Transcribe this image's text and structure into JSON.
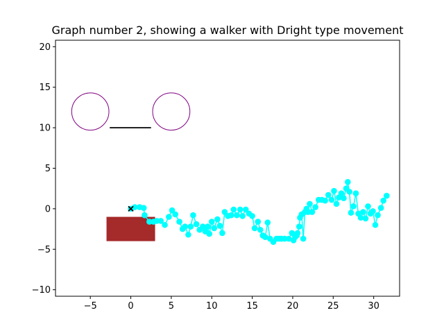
{
  "chart_data": {
    "type": "scatter",
    "title": "Graph number 2, showing a walker with Dright type movement",
    "xlabel": "",
    "ylabel": "",
    "xlim": [
      -9.3,
      33.2
    ],
    "ylim": [
      -10.8,
      20.8
    ],
    "xticks": [
      {
        "value": -5,
        "label": "−5"
      },
      {
        "value": 0,
        "label": "0"
      },
      {
        "value": 5,
        "label": "5"
      },
      {
        "value": 10,
        "label": "10"
      },
      {
        "value": 15,
        "label": "15"
      },
      {
        "value": 20,
        "label": "20"
      },
      {
        "value": 25,
        "label": "25"
      },
      {
        "value": 30,
        "label": "30"
      }
    ],
    "yticks": [
      {
        "value": -10,
        "label": "−10"
      },
      {
        "value": -5,
        "label": "−5"
      },
      {
        "value": 0,
        "label": "0"
      },
      {
        "value": 5,
        "label": "5"
      },
      {
        "value": 10,
        "label": "10"
      },
      {
        "value": 15,
        "label": "15"
      },
      {
        "value": 20,
        "label": "20"
      }
    ],
    "grid": false,
    "legend": "none",
    "colors": {
      "walker": "#00ffff",
      "circles": "#800080",
      "segment": "#000000",
      "rectangle": "#a52a2a",
      "start_marker": "#000000"
    },
    "start_marker": {
      "x": 0,
      "y": 0,
      "symbol": "x"
    },
    "circles": [
      {
        "cx": -5,
        "cy": 12,
        "r": 2.3
      },
      {
        "cx": 5,
        "cy": 12,
        "r": 2.3
      }
    ],
    "segment": {
      "x1": -2.6,
      "y1": 10,
      "x2": 2.5,
      "y2": 10
    },
    "rectangle": {
      "x0": -3,
      "y0": -4,
      "x1": 3,
      "y1": -1
    },
    "walker_path": [
      [
        0,
        0
      ],
      [
        0.5,
        0.2
      ],
      [
        1.1,
        0.2
      ],
      [
        1.6,
        0.1
      ],
      [
        1.7,
        -0.8
      ],
      [
        2.3,
        -1.6
      ],
      [
        2.8,
        -1.6
      ],
      [
        3.2,
        -1.5
      ],
      [
        3.7,
        -1.5
      ],
      [
        4.2,
        -2.0
      ],
      [
        4.7,
        -1.0
      ],
      [
        5.1,
        -0.2
      ],
      [
        5.5,
        -0.7
      ],
      [
        6.0,
        -1.6
      ],
      [
        6.4,
        -2.5
      ],
      [
        6.7,
        -2.2
      ],
      [
        7.1,
        -3.2
      ],
      [
        7.4,
        -2.2
      ],
      [
        7.7,
        -0.8
      ],
      [
        8.1,
        -1.9
      ],
      [
        8.5,
        -2.6
      ],
      [
        8.9,
        -2.2
      ],
      [
        9.2,
        -2.8
      ],
      [
        9.5,
        -2.2
      ],
      [
        9.7,
        -3.1
      ],
      [
        10.0,
        -1.6
      ],
      [
        10.3,
        -2.4
      ],
      [
        10.7,
        -1.3
      ],
      [
        11.0,
        -2.1
      ],
      [
        11.3,
        -3.0
      ],
      [
        11.6,
        -0.4
      ],
      [
        12.0,
        -0.9
      ],
      [
        12.4,
        -0.8
      ],
      [
        12.7,
        -0.1
      ],
      [
        13.1,
        -0.8
      ],
      [
        13.5,
        -0.1
      ],
      [
        13.8,
        -0.9
      ],
      [
        14.2,
        -0.1
      ],
      [
        14.6,
        -0.6
      ],
      [
        15.0,
        -0.9
      ],
      [
        15.3,
        -2.4
      ],
      [
        15.7,
        -1.6
      ],
      [
        16.0,
        -2.6
      ],
      [
        16.3,
        -3.3
      ],
      [
        16.6,
        -3.5
      ],
      [
        16.9,
        -1.7
      ],
      [
        17.2,
        -3.7
      ],
      [
        17.6,
        -4.1
      ],
      [
        18.0,
        -3.7
      ],
      [
        18.3,
        -3.7
      ],
      [
        18.6,
        -3.7
      ],
      [
        19.0,
        -3.7
      ],
      [
        19.5,
        -3.7
      ],
      [
        19.9,
        -3.0
      ],
      [
        20.1,
        -3.9
      ],
      [
        20.3,
        -3.5
      ],
      [
        20.5,
        -3.3
      ],
      [
        20.6,
        -3.0
      ],
      [
        20.8,
        -2.2
      ],
      [
        20.9,
        -1.1
      ],
      [
        21.1,
        -0.7
      ],
      [
        21.3,
        -3.7
      ],
      [
        21.5,
        -0.4
      ],
      [
        21.7,
        0.0
      ],
      [
        21.9,
        -0.4
      ],
      [
        22.1,
        0.6
      ],
      [
        22.4,
        -0.4
      ],
      [
        22.8,
        0.2
      ],
      [
        23.2,
        1.1
      ],
      [
        23.6,
        1.1
      ],
      [
        24.0,
        1.0
      ],
      [
        24.4,
        1.7
      ],
      [
        24.8,
        1.1
      ],
      [
        25.1,
        2.2
      ],
      [
        25.4,
        0.6
      ],
      [
        25.7,
        1.4
      ],
      [
        26.0,
        1.9
      ],
      [
        26.3,
        1.3
      ],
      [
        26.6,
        2.5
      ],
      [
        26.8,
        3.3
      ],
      [
        27.0,
        2.1
      ],
      [
        27.2,
        -0.5
      ],
      [
        27.5,
        0.3
      ],
      [
        27.8,
        1.9
      ],
      [
        28.1,
        -0.6
      ],
      [
        28.4,
        -1.1
      ],
      [
        28.7,
        -0.4
      ],
      [
        29.0,
        -1.2
      ],
      [
        29.3,
        0.3
      ],
      [
        29.6,
        -0.6
      ],
      [
        29.9,
        -0.3
      ],
      [
        30.2,
        -2.0
      ],
      [
        30.5,
        -0.8
      ],
      [
        30.9,
        0.1
      ],
      [
        31.2,
        1.0
      ],
      [
        31.6,
        1.6
      ]
    ]
  }
}
